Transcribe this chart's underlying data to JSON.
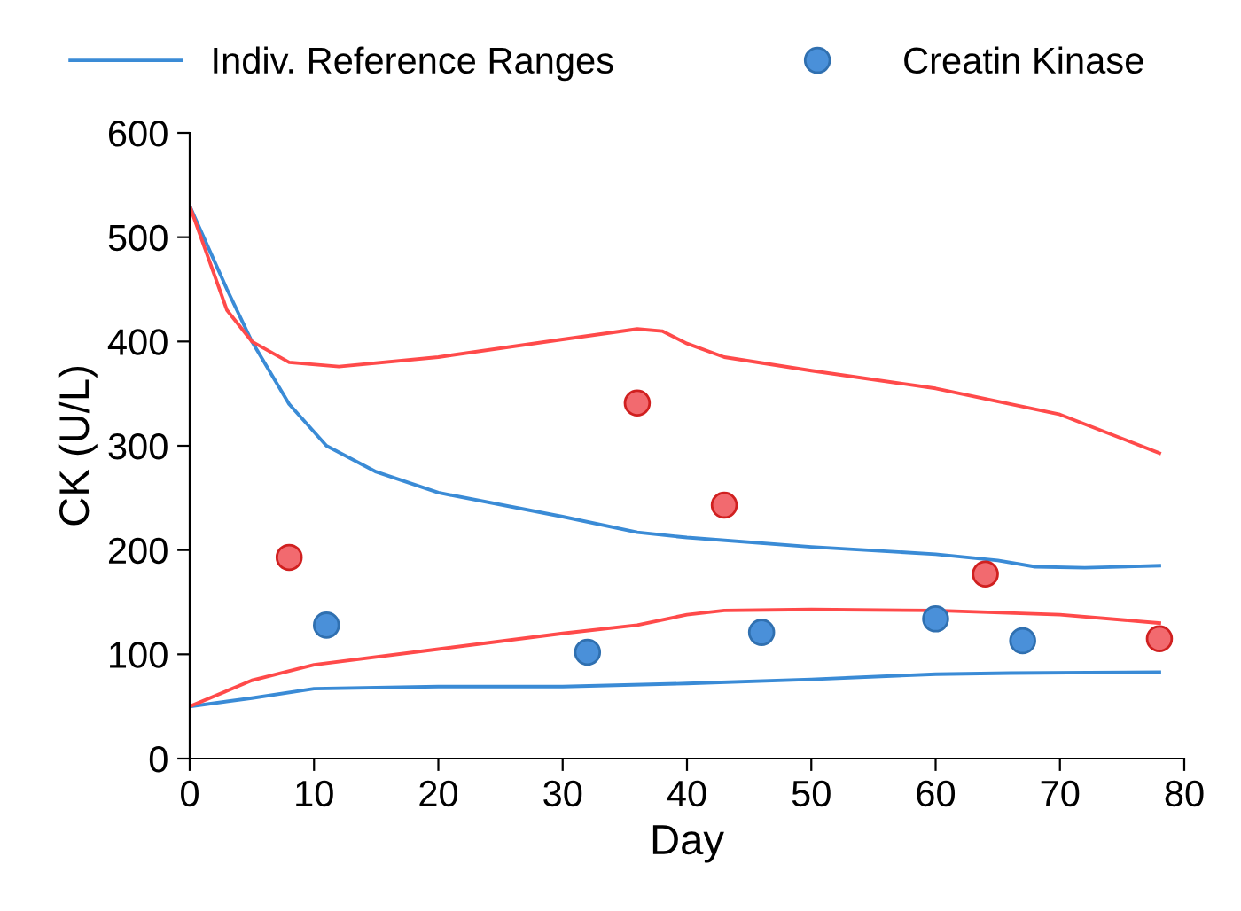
{
  "chart_data": {
    "type": "line",
    "xlabel": "Day",
    "ylabel": "CK (U/L)",
    "xlim": [
      0,
      80
    ],
    "ylim": [
      0,
      600
    ],
    "xticks": [
      0,
      10,
      20,
      30,
      40,
      50,
      60,
      70,
      80
    ],
    "yticks": [
      0,
      100,
      200,
      300,
      400,
      500,
      600
    ],
    "grid": false,
    "legend": "top",
    "series": [
      {
        "name": "Indiv. Reference Ranges",
        "color": "#3a8bd6",
        "x": [
          0,
          3,
          5,
          8,
          11,
          15,
          20,
          30,
          36,
          40,
          50,
          60,
          65,
          68,
          72,
          78
        ],
        "values": [
          530,
          450,
          400,
          340,
          300,
          275,
          255,
          232,
          217,
          212,
          203,
          196,
          190,
          184,
          183,
          185
        ]
      },
      {
        "color": "#3a8bd6",
        "x": [
          0,
          5,
          10,
          20,
          30,
          40,
          50,
          60,
          66,
          78
        ],
        "values": [
          50,
          58,
          67,
          69,
          69,
          72,
          76,
          81,
          82,
          83
        ]
      },
      {
        "color": "#ff4a4a",
        "x": [
          0,
          3,
          5,
          8,
          12,
          20,
          30,
          36,
          38,
          40,
          43,
          50,
          60,
          70,
          78
        ],
        "values": [
          530,
          430,
          400,
          380,
          376,
          385,
          402,
          412,
          410,
          398,
          385,
          372,
          355,
          330,
          293
        ]
      },
      {
        "color": "#ff4a4a",
        "x": [
          0,
          5,
          10,
          20,
          30,
          36,
          40,
          43,
          50,
          60,
          70,
          78
        ],
        "values": [
          50,
          75,
          90,
          105,
          120,
          128,
          138,
          142,
          143,
          142,
          138,
          130
        ]
      },
      {
        "type": "scatter",
        "name": "Creatin Kinase",
        "color": "#4a90d9",
        "marker": "circle",
        "x": [
          11,
          32,
          46,
          60,
          67
        ],
        "values": [
          128,
          102,
          121,
          134,
          113
        ]
      },
      {
        "type": "scatter",
        "color": "#f26a6f",
        "marker": "circle",
        "x": [
          8,
          36,
          43,
          64,
          78
        ],
        "values": [
          193,
          341,
          243,
          177,
          115
        ]
      }
    ]
  }
}
